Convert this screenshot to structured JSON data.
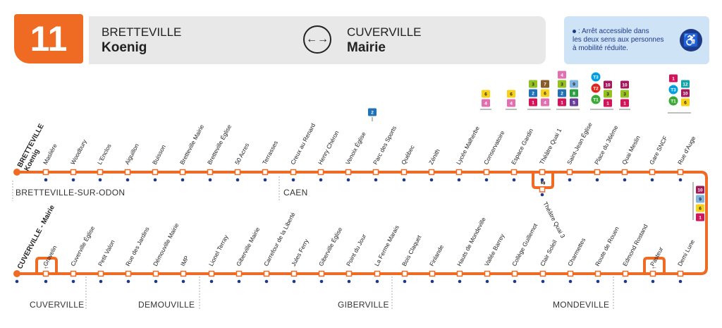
{
  "line": {
    "number": "11",
    "color": "#ef6a22"
  },
  "header": {
    "from_top": "BRETTEVILLE",
    "from_bottom": "Koenig",
    "to_top": "CUVERVILLE",
    "to_bottom": "Mairie",
    "arrows_icon": "bidirectional-arrows-icon"
  },
  "legend": {
    "text_line1": ": Arrêt accessible dans",
    "text_line2": "les deux sens aux personnes",
    "text_line3": "à mobilité réduite.",
    "icon": "wheelchair-icon",
    "color": "#1d3a8a"
  },
  "route_top": {
    "terminus_line1": "BRETTEVILLE",
    "terminus_line2": "Koenig",
    "stops": [
      "Maslière",
      "Woodbury",
      "L'Enclos",
      "Aiguillon",
      "Buisson",
      "Bretteville Mairie",
      "Bretteville Église",
      "50 Acres",
      "Terrasses",
      "Creux au Renard",
      "Henry Chéron",
      "Venoix Église",
      "Parc des Sports",
      "Québec",
      "Zénith",
      "Lycée Malherbe",
      "Conservatoire",
      "Espace Gardin",
      "Théâtre Quai 1",
      "Saint-Jean Église",
      "Place du 36ème",
      "Quai Meslin",
      "Gare SNCF",
      "Rue d'Auge"
    ],
    "towns": [
      "BRETTEVILLE-SUR-ODON",
      "CAEN"
    ]
  },
  "route_bottom": {
    "terminus_line1": "CUVERVILLE - Mairie",
    "stops": [
      "Gravelin",
      "Cuverville Église",
      "Petit Valon",
      "Rue des Jardins",
      "Démouville Mairie",
      "IMP",
      "Lionel Terray",
      "Giberville Mairie",
      "Carrefour de la Liberté",
      "Jules Ferry",
      "Giberville Église",
      "Point du Jour",
      "La Ferme Marais",
      "Bois Claquet",
      "Finlande",
      "Hauts de Mondeville",
      "Vallée Barrey",
      "Collège Guillemot",
      "Clair Soleil",
      "Charmettes",
      "Route de Rouen",
      "Edmond Rostand",
      "Pasteur",
      "Demi Lune"
    ],
    "extra_stop": "Théâtre Quai 3",
    "towns": [
      "CUVERVILLE",
      "DEMOUVILLE",
      "GIBERVILLE",
      "MONDEVILLE"
    ]
  },
  "connections": {
    "venoix": [
      "2"
    ],
    "lycee": [
      "6",
      "4"
    ],
    "conservatoire": [
      "6",
      "4"
    ],
    "gardin_a": [
      "3",
      "2",
      "1"
    ],
    "gardin_b": [
      "7",
      "6",
      "4"
    ],
    "theatre_a": [
      "4",
      "3",
      "2",
      "1"
    ],
    "theatre_b": [
      "9",
      "8",
      "5"
    ],
    "saint_jean_a": [
      "T3",
      "T2",
      "T1"
    ],
    "saint_jean_b": [
      "10",
      "3",
      "1"
    ],
    "place36": [
      "10",
      "3",
      "1"
    ],
    "gare_a": [
      "1",
      "T3",
      "T1"
    ],
    "gare_b": [
      "12",
      "10",
      "6"
    ],
    "demi_lune": [
      "10",
      "9",
      "6",
      "1"
    ]
  },
  "colors": {
    "L1": "#d4145a",
    "L2": "#1f72b8",
    "L3": "#94c11f",
    "L4": "#e26fb0",
    "L5": "#6a3d9a",
    "L6": "#f7d117",
    "L7": "#8a5a2b",
    "L8": "#2e9e44",
    "L9": "#7fb3e0",
    "L10": "#a3195b",
    "L12": "#14a3a8",
    "T1": "#3aaa35",
    "T2": "#e2231a",
    "T3": "#009fe3",
    "stop": "#1d3a8a"
  }
}
